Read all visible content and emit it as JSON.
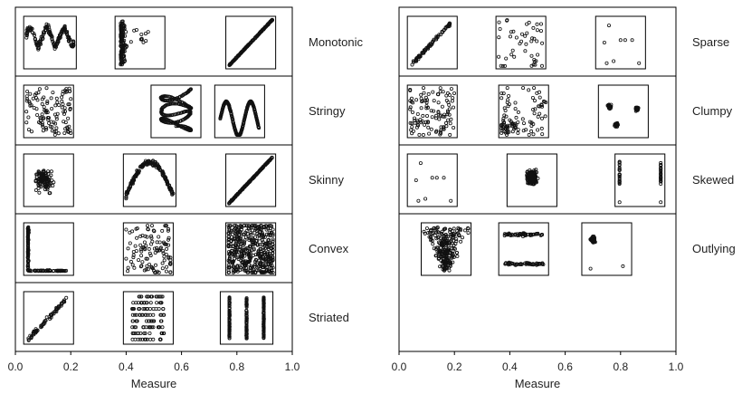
{
  "chart_data": [
    {
      "type": "scatter",
      "title": "",
      "xlabel": "Measure",
      "ylabel": "",
      "xlim": [
        0,
        1
      ],
      "xticks": [
        "0.0",
        "0.2",
        "0.4",
        "0.6",
        "0.8",
        "1.0"
      ],
      "rows": [
        {
          "label": "Monotonic",
          "thumbnails": [
            {
              "x": [
                0.03,
                0.22
              ],
              "pattern": "wavy-band"
            },
            {
              "x": [
                0.36,
                0.54
              ],
              "pattern": "vertical-cluster"
            },
            {
              "x": [
                0.76,
                0.94
              ],
              "pattern": "diagonal-line"
            }
          ]
        },
        {
          "label": "Stringy",
          "thumbnails": [
            {
              "x": [
                0.03,
                0.21
              ],
              "pattern": "random"
            },
            {
              "x": [
                0.49,
                0.67
              ],
              "pattern": "scribble"
            },
            {
              "x": [
                0.72,
                0.9
              ],
              "pattern": "wave-curve"
            }
          ]
        },
        {
          "label": "Skinny",
          "thumbnails": [
            {
              "x": [
                0.03,
                0.21
              ],
              "pattern": "blob"
            },
            {
              "x": [
                0.39,
                0.58
              ],
              "pattern": "arch"
            },
            {
              "x": [
                0.76,
                0.94
              ],
              "pattern": "diagonal-line"
            }
          ]
        },
        {
          "label": "Convex",
          "thumbnails": [
            {
              "x": [
                0.03,
                0.21
              ],
              "pattern": "l-shape"
            },
            {
              "x": [
                0.39,
                0.57
              ],
              "pattern": "random"
            },
            {
              "x": [
                0.76,
                0.94
              ],
              "pattern": "filled-square"
            }
          ]
        },
        {
          "label": "Striated",
          "thumbnails": [
            {
              "x": [
                0.03,
                0.21
              ],
              "pattern": "diagonal-band"
            },
            {
              "x": [
                0.39,
                0.57
              ],
              "pattern": "horizontal-stripes"
            },
            {
              "x": [
                0.74,
                0.93
              ],
              "pattern": "vertical-stripes"
            }
          ]
        }
      ]
    },
    {
      "type": "scatter",
      "title": "",
      "xlabel": "Measure",
      "ylabel": "",
      "xlim": [
        0,
        1
      ],
      "xticks": [
        "0.0",
        "0.2",
        "0.4",
        "0.6",
        "0.8",
        "1.0"
      ],
      "rows": [
        {
          "label": "Sparse",
          "thumbnails": [
            {
              "x": [
                0.03,
                0.21
              ],
              "pattern": "diagonal-band"
            },
            {
              "x": [
                0.35,
                0.53
              ],
              "pattern": "sparse-random"
            },
            {
              "x": [
                0.71,
                0.89
              ],
              "pattern": "few-points"
            }
          ]
        },
        {
          "label": "Clumpy",
          "thumbnails": [
            {
              "x": [
                0.03,
                0.21
              ],
              "pattern": "random"
            },
            {
              "x": [
                0.36,
                0.54
              ],
              "pattern": "random-bottom"
            },
            {
              "x": [
                0.72,
                0.9
              ],
              "pattern": "clusters"
            }
          ]
        },
        {
          "label": "Skewed",
          "thumbnails": [
            {
              "x": [
                0.03,
                0.21
              ],
              "pattern": "few-points"
            },
            {
              "x": [
                0.39,
                0.57
              ],
              "pattern": "dense-blob"
            },
            {
              "x": [
                0.78,
                0.96
              ],
              "pattern": "edge-columns"
            }
          ]
        },
        {
          "label": "Outlying",
          "thumbnails": [
            {
              "x": [
                0.08,
                0.26
              ],
              "pattern": "funnel"
            },
            {
              "x": [
                0.36,
                0.54
              ],
              "pattern": "two-bands"
            },
            {
              "x": [
                0.66,
                0.84
              ],
              "pattern": "cluster-outliers"
            }
          ]
        }
      ]
    }
  ]
}
